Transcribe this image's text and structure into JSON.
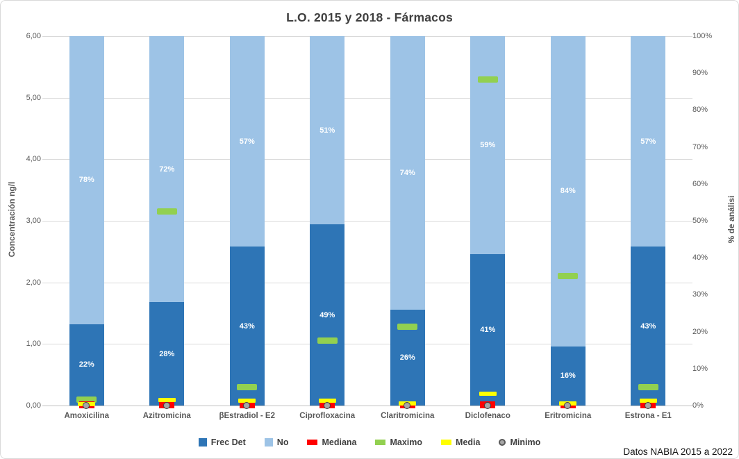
{
  "title": "L.O. 2015 y 2018 - Fármacos",
  "note": "Datos NABIA 2015 a 2022",
  "axes": {
    "left_title": "Concentración ng/l",
    "right_title": "% de análisi",
    "left_ticks": [
      "6,00",
      "5,00",
      "4,00",
      "3,00",
      "2,00",
      "1,00",
      "0,00"
    ],
    "right_ticks": [
      "100%",
      "90%",
      "80%",
      "70%",
      "60%",
      "50%",
      "40%",
      "30%",
      "20%",
      "10%",
      "0%"
    ]
  },
  "colors": {
    "frec_det": "#2E75B6",
    "no": "#9DC3E6",
    "mediana": "#FF0000",
    "maximo": "#92D050",
    "media": "#FFFF00",
    "minimo_fill": "#A6A6A6",
    "minimo_border": "#404040",
    "grid": "#D9D9D9",
    "axis_text": "#595959",
    "title_text": "#404040"
  },
  "legend": [
    {
      "label": "Frec Det",
      "swatch": "square",
      "color": "#2E75B6"
    },
    {
      "label": "No",
      "swatch": "square",
      "color": "#9DC3E6"
    },
    {
      "label": "Mediana",
      "swatch": "rect",
      "color": "#FF0000"
    },
    {
      "label": "Maximo",
      "swatch": "rect",
      "color": "#92D050"
    },
    {
      "label": "Media",
      "swatch": "rect",
      "color": "#FFFF00"
    },
    {
      "label": "Minimo",
      "swatch": "circle",
      "color": "#A6A6A6"
    }
  ],
  "chart_data": {
    "type": "bar",
    "stacked": true,
    "title": "L.O. 2015 y 2018 - Fármacos",
    "categories": [
      "Amoxicilina",
      "Azitromicina",
      "βEstradiol - E2",
      "Ciprofloxacina",
      "Claritromicina",
      "Diclofenaco",
      "Eritromicina",
      "Estrona - E1"
    ],
    "series": [
      {
        "name": "Frec Det",
        "unit": "%",
        "color": "#2E75B6",
        "values": [
          22,
          28,
          43,
          49,
          26,
          41,
          16,
          43
        ]
      },
      {
        "name": "No",
        "unit": "%",
        "color": "#9DC3E6",
        "values": [
          78,
          72,
          57,
          51,
          74,
          59,
          84,
          57
        ]
      }
    ],
    "markers": [
      {
        "name": "Maximo",
        "unit": "ng/l",
        "color": "#92D050",
        "values": [
          0.1,
          3.15,
          0.3,
          1.05,
          1.28,
          5.3,
          2.1,
          0.3
        ]
      },
      {
        "name": "Media",
        "unit": "ng/l",
        "color": "#FFFF00",
        "values": [
          0.02,
          0.09,
          0.08,
          0.08,
          0.03,
          0.19,
          0.03,
          0.08
        ]
      },
      {
        "name": "Mediana",
        "unit": "ng/l",
        "color": "#FF0000",
        "values": [
          0.01,
          0.01,
          0.01,
          0.01,
          0.01,
          0.01,
          0.01,
          0.01
        ]
      },
      {
        "name": "Minimo",
        "unit": "ng/l",
        "color": "#A6A6A6",
        "values": [
          0.0,
          0.0,
          0.0,
          0.0,
          0.0,
          0.0,
          0.0,
          0.0
        ]
      }
    ],
    "left_axis": {
      "label": "Concentración ng/l",
      "min": 0,
      "max": 6,
      "step": 1,
      "decimal": "comma"
    },
    "right_axis": {
      "label": "% de análisi",
      "min": 0,
      "max": 100,
      "step": 10
    },
    "grid": true,
    "legend_position": "bottom"
  }
}
